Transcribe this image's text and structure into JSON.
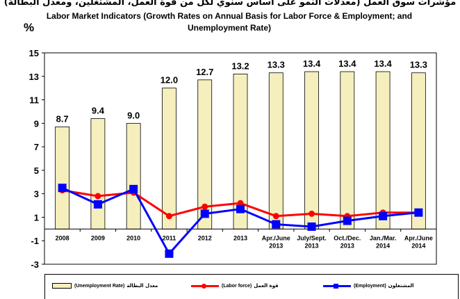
{
  "header": {
    "title_ar": "مؤشرات سوق العمل (معدلات النمو على أساس سنوي لكل من قوة العمل، المشتغلين، ومعدل البطالة)",
    "title_en": "Labor Market Indicators (Growth Rates on Annual Basis for Labor Force & Employment;  and Unemployment Rate)",
    "unit": "%"
  },
  "colors": {
    "bar_fill": "#f4efbd",
    "labor_force": "#ff0000",
    "employment": "#0000ff"
  },
  "legend": [
    {
      "en": "(Unemployment Rate)",
      "ar": "معدل البطالة",
      "icon": "bar-swatch-icon"
    },
    {
      "en": "(Labor force)",
      "ar": "قوة العمل",
      "icon": "red-line-circle-icon"
    },
    {
      "en": "(Employment)",
      "ar": "المشتغلون",
      "icon": "blue-line-square-icon"
    }
  ],
  "chart_data": {
    "type": "bar",
    "categories": [
      [
        "2008"
      ],
      [
        "2009"
      ],
      [
        "2010"
      ],
      [
        "2011"
      ],
      [
        "2012"
      ],
      [
        "2013"
      ],
      [
        "Apr./June",
        "2013"
      ],
      [
        "July/Sept.",
        "2013"
      ],
      [
        "Oct./Dec.",
        "2013"
      ],
      [
        "Jan./Mar.",
        "2014"
      ],
      [
        "Apr./June",
        "2014"
      ]
    ],
    "ylim": [
      -3,
      15
    ],
    "yticks": [
      -3,
      -1,
      1,
      3,
      5,
      7,
      9,
      11,
      13,
      15
    ],
    "grid": false,
    "legend_position": "bottom",
    "series": [
      {
        "name": "Unemployment Rate",
        "kind": "bar",
        "values": [
          8.7,
          9.4,
          9.0,
          12.0,
          12.7,
          13.2,
          13.3,
          13.4,
          13.4,
          13.4,
          13.3
        ],
        "labels": [
          "8.7",
          "9.4",
          "9.0",
          "12.0",
          "12.7",
          "13.2",
          "13.3",
          "13.4",
          "13.4",
          "13.4",
          "13.3"
        ]
      },
      {
        "name": "Labor force",
        "kind": "line",
        "values": [
          3.3,
          2.8,
          3.1,
          1.1,
          1.9,
          2.2,
          1.1,
          1.3,
          1.1,
          1.4,
          1.4
        ]
      },
      {
        "name": "Employment",
        "kind": "line",
        "values": [
          3.5,
          2.1,
          3.4,
          -2.1,
          1.3,
          1.7,
          0.4,
          0.2,
          0.7,
          1.1,
          1.4
        ]
      }
    ]
  }
}
